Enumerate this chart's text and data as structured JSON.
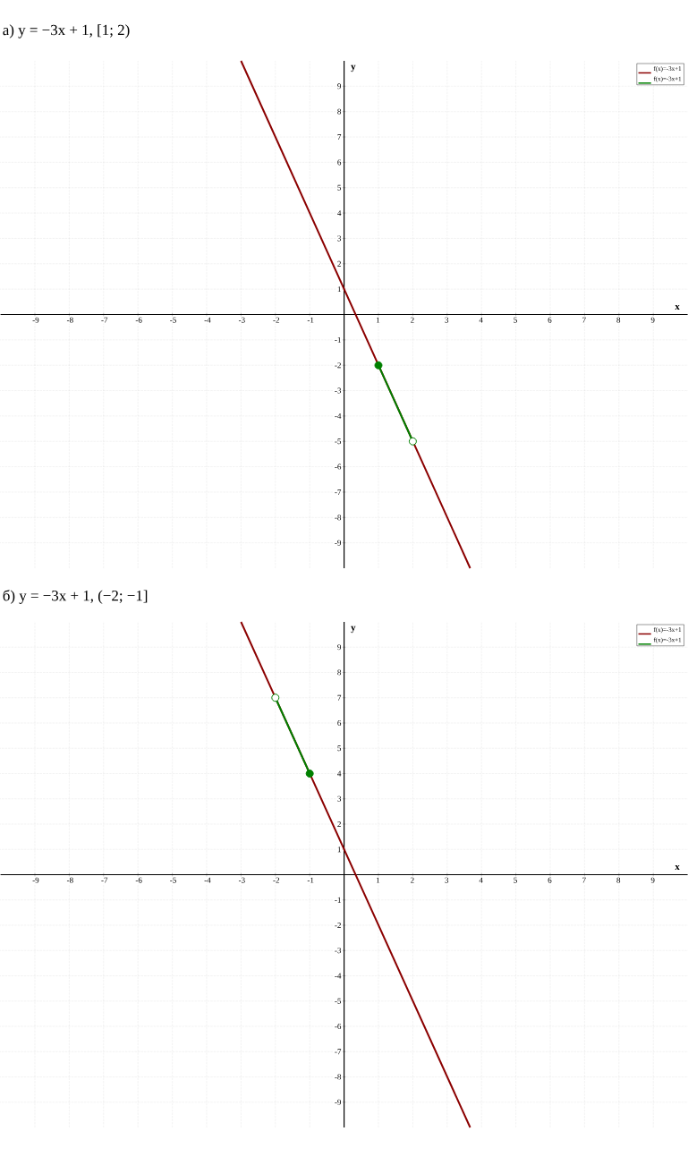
{
  "chart_data": [
    {
      "type": "line",
      "title": "а) y = −3x + 1,      [1; 2)",
      "xlabel": "x",
      "ylabel": "y",
      "xlim": [
        -10,
        10
      ],
      "ylim": [
        -10,
        10
      ],
      "xticks": [
        -9,
        -8,
        -7,
        -6,
        -5,
        -4,
        -3,
        -2,
        -1,
        1,
        2,
        3,
        4,
        5,
        6,
        7,
        8,
        9
      ],
      "yticks": [
        -9,
        -8,
        -7,
        -6,
        -5,
        -4,
        -3,
        -2,
        -1,
        1,
        2,
        3,
        4,
        5,
        6,
        7,
        8,
        9
      ],
      "grid": true,
      "legend": "top right",
      "series": [
        {
          "name": "f(x)=-3x+1",
          "color": "#8b0000",
          "x": [
            -3,
            3.67
          ],
          "values": [
            10,
            -10
          ]
        },
        {
          "name": "f(x)=-3x+1",
          "color": "#008000",
          "x": [
            1,
            2
          ],
          "values": [
            -2,
            -5
          ]
        },
        {
          "type": "scatter",
          "color": "#008000",
          "x": [
            1
          ],
          "values": [
            -2
          ]
        },
        {
          "type": "scatter",
          "color": "#ffffff",
          "x": [
            2
          ],
          "values": [
            -5
          ]
        }
      ]
    },
    {
      "type": "line",
      "title": "б) y = −3x + 1,      (−2; −1]",
      "xlabel": "x",
      "ylabel": "y",
      "xlim": [
        -10,
        10
      ],
      "ylim": [
        -10,
        10
      ],
      "xticks": [
        -9,
        -8,
        -7,
        -6,
        -5,
        -4,
        -3,
        -2,
        -1,
        1,
        2,
        3,
        4,
        5,
        6,
        7,
        8,
        9
      ],
      "yticks": [
        -9,
        -8,
        -7,
        -6,
        -5,
        -4,
        -3,
        -2,
        -1,
        1,
        2,
        3,
        4,
        5,
        6,
        7,
        8,
        9
      ],
      "grid": true,
      "legend": "top right",
      "series": [
        {
          "name": "f(x)=-3x+1",
          "color": "#8b0000",
          "x": [
            -3,
            3.67
          ],
          "values": [
            10,
            -10
          ]
        },
        {
          "name": "f(x)=-3x+1",
          "color": "#008000",
          "x": [
            -2,
            -1
          ],
          "values": [
            7,
            4
          ]
        },
        {
          "type": "scatter",
          "color": "#ffffff",
          "x": [
            -2
          ],
          "values": [
            7
          ]
        },
        {
          "type": "scatter",
          "color": "#008000",
          "x": [
            -1
          ],
          "values": [
            4
          ]
        }
      ]
    }
  ]
}
